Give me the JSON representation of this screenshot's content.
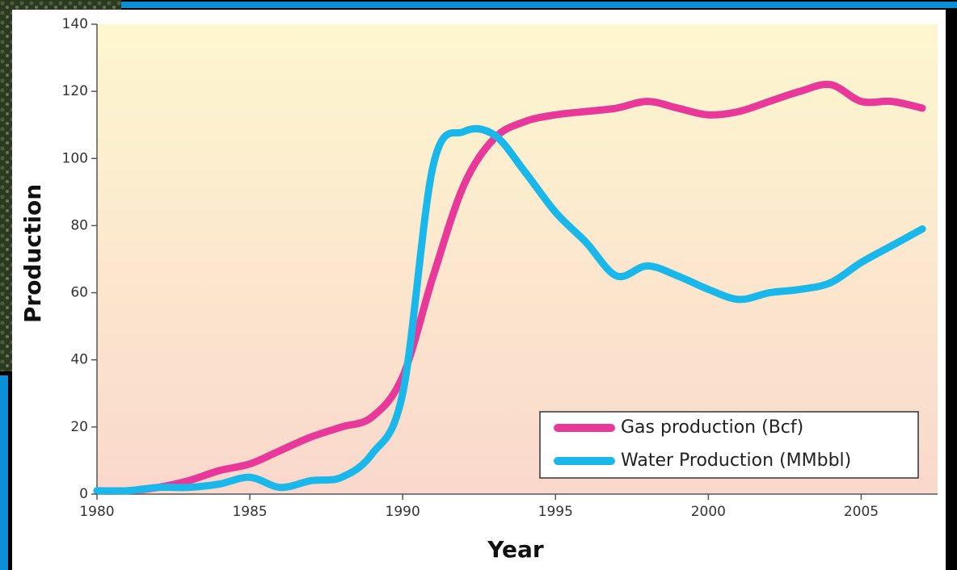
{
  "chart_data": {
    "type": "line",
    "x_label": "Year",
    "y_label": "Production",
    "x": [
      1980,
      1981,
      1982,
      1983,
      1984,
      1985,
      1986,
      1987,
      1988,
      1989,
      1990,
      1991,
      1992,
      1993,
      1994,
      1995,
      1996,
      1997,
      1998,
      1999,
      2000,
      2001,
      2002,
      2003,
      2004,
      2005,
      2006,
      2007
    ],
    "series": [
      {
        "name": "Gas production (Bcf)",
        "color": "#e8399a",
        "values": [
          1,
          1,
          2,
          4,
          7,
          9,
          13,
          17,
          20,
          23,
          35,
          65,
          92,
          106,
          111,
          113,
          114,
          115,
          117,
          115,
          113,
          114,
          117,
          120,
          122,
          117,
          117,
          115
        ]
      },
      {
        "name": "Water Production (MMbbl)",
        "color": "#1ab8ea",
        "values": [
          1,
          1,
          2,
          2,
          3,
          5,
          2,
          4,
          5,
          12,
          30,
          98,
          108,
          107,
          96,
          84,
          75,
          65,
          68,
          65,
          61,
          58,
          60,
          61,
          63,
          69,
          74,
          79
        ]
      }
    ],
    "xlim": [
      1980,
      2007.5
    ],
    "ylim": [
      0,
      140
    ],
    "xticks": [
      1980,
      1985,
      1990,
      1995,
      2000,
      2005
    ],
    "yticks": [
      0,
      20,
      40,
      60,
      80,
      100,
      120,
      140
    ],
    "grid": false,
    "legend": "lower right"
  }
}
